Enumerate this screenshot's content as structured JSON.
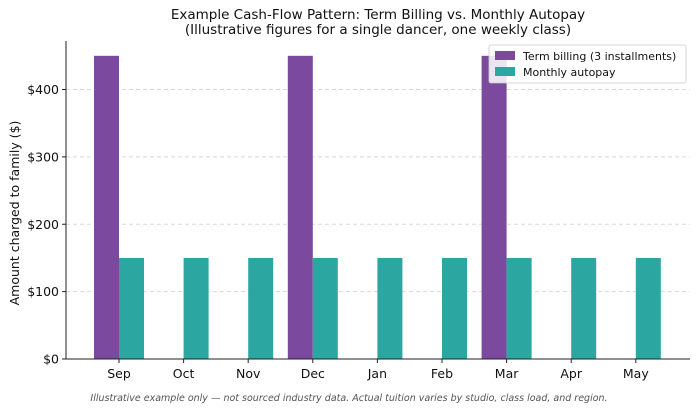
{
  "chart_data": {
    "type": "bar",
    "title_line1": "Example Cash-Flow Pattern: Term Billing vs. Monthly Autopay",
    "title_line2": "(Illustrative figures for a single dancer, one weekly class)",
    "xlabel": "",
    "ylabel": "Amount charged to family ($)",
    "categories": [
      "Sep",
      "Oct",
      "Nov",
      "Dec",
      "Jan",
      "Feb",
      "Mar",
      "Apr",
      "May"
    ],
    "series": [
      {
        "name": "Term billing (3 installments)",
        "color": "#7b4a9e",
        "values": [
          450,
          0,
          0,
          450,
          0,
          0,
          450,
          0,
          0
        ]
      },
      {
        "name": "Monthly autopay",
        "color": "#2ca6a0",
        "values": [
          150,
          150,
          150,
          150,
          150,
          150,
          150,
          150,
          150
        ]
      }
    ],
    "ylim": [
      0,
      472
    ],
    "yticks": [
      0,
      100,
      200,
      300,
      400
    ],
    "ytick_labels": [
      "$0",
      "$100",
      "$200",
      "$300",
      "$400"
    ],
    "grid": "horizontal dashed",
    "legend_position": "top-right",
    "footnote": "Illustrative example only — not sourced industry data. Actual tuition varies by studio, class load, and region."
  }
}
